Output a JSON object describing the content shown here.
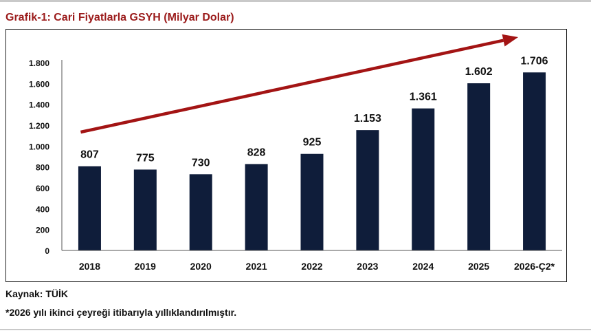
{
  "title": "Grafik-1: Cari Fiyatlarla GSYH (Milyar Dolar)",
  "source": "Kaynak: TÜİK",
  "footnote": "*2026 yılı ikinci çeyreği itibarıyla yıllıklandırılmıştır.",
  "colors": {
    "title": "#9b1b1b",
    "bar": "#0f1d3a",
    "trend_arrow": "#a31414"
  },
  "chart_data": {
    "type": "bar",
    "title": "Grafik-1: Cari Fiyatlarla GSYH (Milyar Dolar)",
    "xlabel": "",
    "ylabel": "",
    "categories": [
      "2018",
      "2019",
      "2020",
      "2021",
      "2022",
      "2023",
      "2024",
      "2025",
      "2026-Ç2*"
    ],
    "values": [
      807,
      775,
      730,
      828,
      925,
      1153,
      1361,
      1602,
      1706
    ],
    "value_labels": [
      "807",
      "775",
      "730",
      "828",
      "925",
      "1.153",
      "1.361",
      "1.602",
      "1.706"
    ],
    "ylim": [
      0,
      1800
    ],
    "yticks": [
      0,
      200,
      400,
      600,
      800,
      1000,
      1200,
      1400,
      1600,
      1800
    ],
    "ytick_labels": [
      "0",
      "200",
      "400",
      "600",
      "800",
      "1.000",
      "1.200",
      "1.400",
      "1.600",
      "1.800"
    ],
    "grid": false,
    "legend": "none",
    "annotations": [
      "upward trend arrow"
    ]
  }
}
